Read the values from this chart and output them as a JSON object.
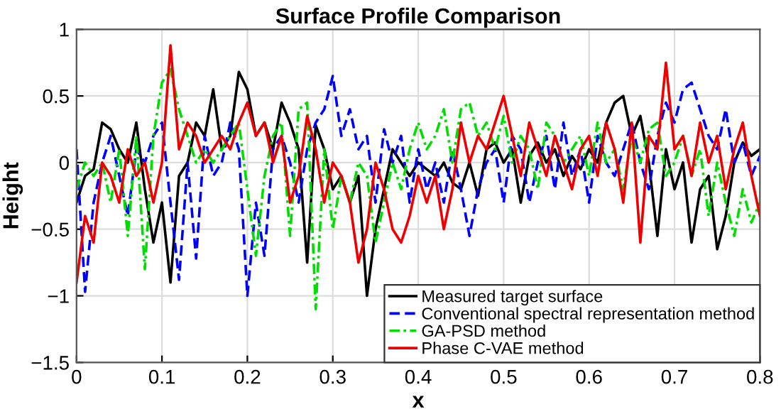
{
  "chart_data": {
    "type": "line",
    "title": "Surface Profile Comparison",
    "xlabel": "x",
    "ylabel": "Height",
    "x": [
      0,
      0.01,
      0.02,
      0.03,
      0.04,
      0.05,
      0.06,
      0.07,
      0.08,
      0.09,
      0.1,
      0.11,
      0.12,
      0.13,
      0.14,
      0.15,
      0.16,
      0.17,
      0.18,
      0.19,
      0.2,
      0.21,
      0.22,
      0.23,
      0.24,
      0.25,
      0.26,
      0.27,
      0.28,
      0.29,
      0.3,
      0.31,
      0.32,
      0.33,
      0.34,
      0.35,
      0.36,
      0.37,
      0.38,
      0.39,
      0.4,
      0.41,
      0.42,
      0.43,
      0.44,
      0.45,
      0.46,
      0.47,
      0.48,
      0.49,
      0.5,
      0.51,
      0.52,
      0.53,
      0.54,
      0.55,
      0.56,
      0.57,
      0.58,
      0.59,
      0.6,
      0.61,
      0.62,
      0.63,
      0.64,
      0.65,
      0.66,
      0.67,
      0.68,
      0.69,
      0.7,
      0.71,
      0.72,
      0.73,
      0.74,
      0.75,
      0.76,
      0.77,
      0.78,
      0.79,
      0.8
    ],
    "series": [
      {
        "name": "Measured target surface",
        "color": "#000000",
        "line_style": "solid",
        "values": [
          -0.3,
          -0.1,
          -0.05,
          0.3,
          0.25,
          0.1,
          0.0,
          0.3,
          -0.2,
          -0.6,
          -0.3,
          -0.9,
          -0.1,
          0.0,
          0.3,
          0.2,
          0.55,
          0.1,
          0.2,
          0.68,
          0.55,
          0.2,
          0.3,
          0.1,
          0.45,
          0.3,
          0.1,
          -0.75,
          0.28,
          0.1,
          -0.2,
          -0.1,
          -0.3,
          -0.1,
          -1.0,
          -0.5,
          -0.2,
          0.1,
          0.0,
          -0.1,
          0.0,
          -0.05,
          -0.1,
          0.0,
          -0.15,
          -0.2,
          0.0,
          -0.25,
          0.1,
          0.15,
          0.0,
          0.1,
          -0.3,
          0.05,
          0.15,
          0.0,
          0.1,
          -0.1,
          0.05,
          -0.05,
          0.1,
          0.0,
          0.3,
          0.45,
          0.5,
          0.2,
          0.35,
          0.0,
          -0.55,
          0.1,
          -0.2,
          0.0,
          -0.6,
          -0.2,
          -0.1,
          -0.65,
          -0.4,
          0.0,
          0.15,
          0.05,
          0.1
        ]
      },
      {
        "name": "Conventional spectral representation method",
        "color": "#0000ff",
        "line_style": "dashed",
        "values": [
          0.1,
          -0.97,
          -0.3,
          0.0,
          0.2,
          -0.1,
          -0.4,
          0.1,
          0.0,
          0.2,
          0.3,
          -0.3,
          -0.88,
          0.0,
          -0.72,
          0.2,
          -0.1,
          0.0,
          0.3,
          0.1,
          -1.0,
          -0.3,
          -0.7,
          0.1,
          0.2,
          0.0,
          -0.3,
          0.1,
          0.3,
          0.4,
          0.65,
          0.2,
          0.4,
          0.1,
          0.2,
          -0.3,
          0.25,
          0.0,
          0.2,
          -0.3,
          0.1,
          -0.2,
          0.0,
          -0.3,
          0.1,
          -0.2,
          -0.55,
          -0.2,
          0.0,
          0.1,
          -0.3,
          0.2,
          0.1,
          -0.3,
          0.0,
          0.2,
          -0.2,
          0.3,
          -0.1,
          0.1,
          -0.3,
          0.2,
          0.0,
          -0.1,
          0.1,
          0.3,
          0.0,
          -0.2,
          0.2,
          0.45,
          0.3,
          0.55,
          0.6,
          0.4,
          0.2,
          0.1,
          0.4,
          0.0,
          0.15,
          -0.1,
          0.05
        ]
      },
      {
        "name": "GA-PSD method",
        "color": "#00dd00",
        "line_style": "dashdot",
        "values": [
          -0.2,
          0.0,
          -0.1,
          0.0,
          -0.3,
          0.1,
          -0.55,
          0.2,
          -0.8,
          0.2,
          0.6,
          0.7,
          0.4,
          0.2,
          0.0,
          0.1,
          0.0,
          0.1,
          0.2,
          0.3,
          -0.2,
          -0.7,
          -0.1,
          0.2,
          0.3,
          -0.55,
          0.4,
          0.45,
          -1.1,
          0.1,
          -0.5,
          -0.1,
          -0.3,
          0.0,
          -0.1,
          -0.6,
          -0.3,
          0.0,
          -0.2,
          0.1,
          0.3,
          0.1,
          0.2,
          0.4,
          0.0,
          0.4,
          0.45,
          0.2,
          0.3,
          0.1,
          0.35,
          0.0,
          0.2,
          0.1,
          -0.2,
          0.3,
          0.2,
          0.0,
          0.1,
          0.2,
          -0.1,
          0.3,
          0.0,
          0.1,
          -0.2,
          0.2,
          0.0,
          0.25,
          0.3,
          -0.1,
          0.0,
          0.2,
          -0.1,
          0.1,
          -0.4,
          0.0,
          -0.3,
          -0.55,
          -0.2,
          -0.45,
          -0.3
        ]
      },
      {
        "name": "Phase C-VAE method",
        "color": "#ee0000",
        "line_style": "solid",
        "values": [
          -0.9,
          -0.4,
          -0.6,
          0.0,
          -0.1,
          -0.3,
          0.1,
          -0.1,
          0.0,
          -0.3,
          0.0,
          0.88,
          0.1,
          0.3,
          0.2,
          0.0,
          0.1,
          0.2,
          0.1,
          0.3,
          0.45,
          0.2,
          0.3,
          0.0,
          0.2,
          -0.3,
          -0.1,
          0.35,
          0.1,
          -0.3,
          0.0,
          -0.1,
          -0.3,
          -0.75,
          -0.5,
          0.0,
          -0.2,
          -0.5,
          -0.6,
          -0.4,
          -0.1,
          -0.3,
          -0.1,
          -0.5,
          -0.2,
          0.3,
          0.0,
          0.2,
          0.1,
          0.3,
          0.5,
          0.2,
          -0.1,
          0.3,
          0.1,
          -0.1,
          0.2,
          0.0,
          -0.2,
          0.1,
          0.2,
          -0.1,
          0.3,
          0.1,
          -0.3,
          0.3,
          -0.6,
          0.2,
          0.1,
          0.75,
          0.1,
          0.2,
          -0.1,
          0.3,
          0.0,
          0.2,
          -0.2,
          0.1,
          0.3,
          -0.1,
          -0.4
        ]
      }
    ],
    "xlim": [
      0,
      0.8
    ],
    "xticks": [
      0,
      0.1,
      0.2,
      0.3,
      0.4,
      0.5,
      0.6,
      0.7,
      0.8
    ],
    "ylim": [
      -1.5,
      1
    ],
    "yticks": [
      {
        "value": -1.5,
        "label": "−1.5"
      },
      {
        "value": -1,
        "label": "−1"
      },
      {
        "value": -0.5,
        "label": "−0.5"
      },
      0,
      0.5,
      1
    ],
    "grid": true,
    "legend": "bottom right",
    "marker": "none"
  }
}
